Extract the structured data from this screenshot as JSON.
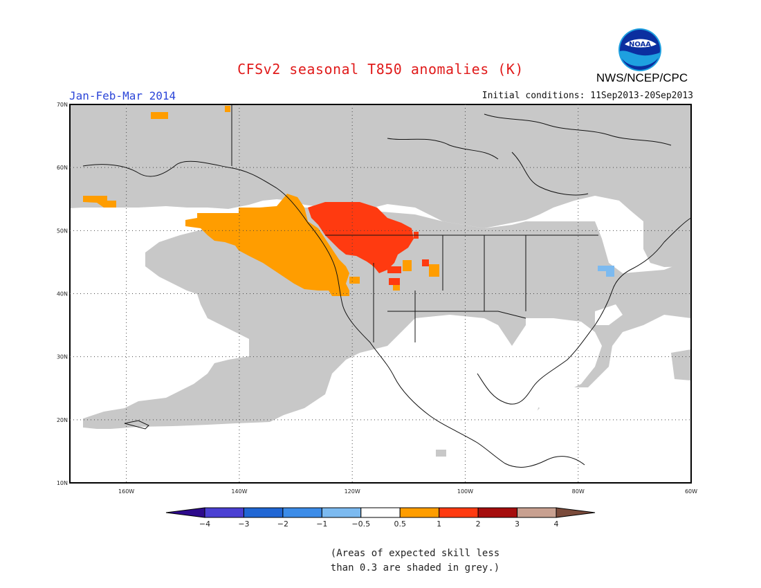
{
  "title": "CFSv2 seasonal T850 anomalies (K)",
  "period": "Jan-Feb-Mar 2014",
  "initial_conditions": "Initial conditions: 11Sep2013-20Sep2013",
  "agency": "NWS/NCEP/CPC",
  "logo_text": "NOAA",
  "logo_icon": "noaa-logo-icon",
  "note_line1": "(Areas of expected skill less",
  "note_line2": "than 0.3 are shaded in grey.)",
  "map": {
    "lat_labels": [
      "70N",
      "60N",
      "50N",
      "40N",
      "30N",
      "20N",
      "10N"
    ],
    "lon_labels": [
      "160W",
      "140W",
      "120W",
      "100W",
      "80W",
      "60W"
    ],
    "lon_range": [
      -170,
      -60
    ],
    "lat_range": [
      10,
      70
    ],
    "grid": true,
    "grey_color": "#c8c8c8"
  },
  "colorbar": {
    "labels": [
      "-4",
      "-3",
      "-2",
      "-1",
      "-0.5",
      "0.5",
      "1",
      "2",
      "3",
      "4"
    ],
    "colors": [
      "#2d0a8c",
      "#4a3fd2",
      "#2066d4",
      "#3c8ce8",
      "#7cbaf0",
      "#ffffff",
      "#ff9d00",
      "#ff3a10",
      "#a50d0d",
      "#c8a090",
      "#7a4a3a"
    ]
  }
}
